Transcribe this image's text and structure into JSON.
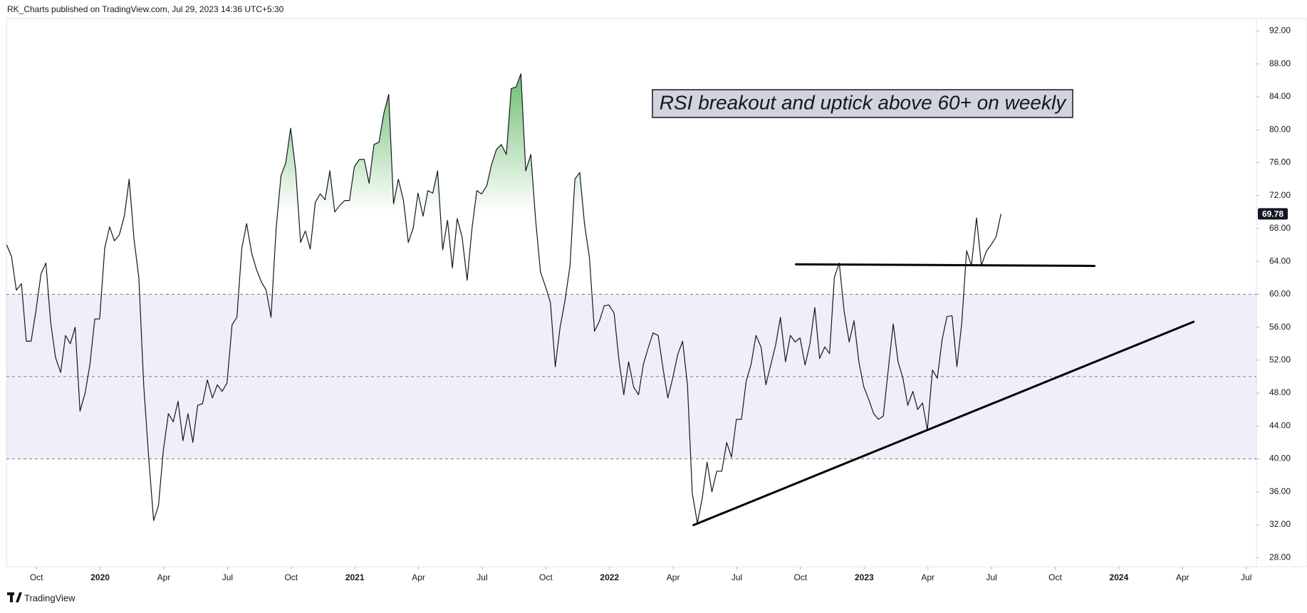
{
  "chart_data": {
    "type": "line",
    "header": "RK_Charts published on TradingView.com, Jul 29, 2023 14:36 UTC+5:30",
    "footer": "TradingView",
    "annotation": "RSI breakout and uptick above 60+ on weekly",
    "x": [
      2019.633,
      2019.652,
      2019.671,
      2019.691,
      2019.71,
      2019.729,
      2019.748,
      2019.768,
      2019.787,
      2019.806,
      2019.825,
      2019.845,
      2019.864,
      2019.883,
      2019.902,
      2019.921,
      2019.941,
      2019.96,
      2019.979,
      2019.998,
      2020.018,
      2020.037,
      2020.056,
      2020.075,
      2020.095,
      2020.114,
      2020.133,
      2020.152,
      2020.171,
      2020.191,
      2020.21,
      2020.229,
      2020.248,
      2020.268,
      2020.287,
      2020.306,
      2020.325,
      2020.345,
      2020.364,
      2020.383,
      2020.402,
      2020.421,
      2020.441,
      2020.46,
      2020.479,
      2020.498,
      2020.518,
      2020.537,
      2020.556,
      2020.575,
      2020.595,
      2020.614,
      2020.633,
      2020.652,
      2020.671,
      2020.691,
      2020.71,
      2020.729,
      2020.748,
      2020.768,
      2020.787,
      2020.806,
      2020.825,
      2020.845,
      2020.864,
      2020.883,
      2020.902,
      2020.921,
      2020.941,
      2020.96,
      2020.979,
      2020.998,
      2021.018,
      2021.037,
      2021.056,
      2021.075,
      2021.095,
      2021.114,
      2021.133,
      2021.152,
      2021.171,
      2021.191,
      2021.21,
      2021.229,
      2021.248,
      2021.268,
      2021.287,
      2021.306,
      2021.325,
      2021.345,
      2021.364,
      2021.383,
      2021.402,
      2021.421,
      2021.441,
      2021.46,
      2021.479,
      2021.498,
      2021.518,
      2021.537,
      2021.556,
      2021.575,
      2021.595,
      2021.614,
      2021.633,
      2021.652,
      2021.671,
      2021.691,
      2021.71,
      2021.729,
      2021.748,
      2021.768,
      2021.787,
      2021.806,
      2021.825,
      2021.845,
      2021.864,
      2021.883,
      2021.902,
      2021.921,
      2021.941,
      2021.96,
      2021.979,
      2021.998,
      2022.018,
      2022.037,
      2022.056,
      2022.075,
      2022.095,
      2022.114,
      2022.133,
      2022.152,
      2022.171,
      2022.191,
      2022.21,
      2022.229,
      2022.248,
      2022.268,
      2022.287,
      2022.306,
      2022.325,
      2022.345,
      2022.364,
      2022.383,
      2022.402,
      2022.421,
      2022.441,
      2022.46,
      2022.479,
      2022.498,
      2022.518,
      2022.537,
      2022.556,
      2022.575,
      2022.595,
      2022.614,
      2022.633,
      2022.652,
      2022.671,
      2022.691,
      2022.71,
      2022.729,
      2022.748,
      2022.768,
      2022.787,
      2022.806,
      2022.825,
      2022.845,
      2022.864,
      2022.883,
      2022.902,
      2022.921,
      2022.941,
      2022.96,
      2022.979,
      2022.998,
      2023.018,
      2023.037,
      2023.056,
      2023.075,
      2023.095,
      2023.114,
      2023.133,
      2023.152,
      2023.171,
      2023.191,
      2023.21,
      2023.229,
      2023.248,
      2023.268,
      2023.287,
      2023.306,
      2023.325,
      2023.345,
      2023.364,
      2023.383,
      2023.402,
      2023.421,
      2023.441,
      2023.46,
      2023.479,
      2023.498,
      2023.518,
      2023.537
    ],
    "series": [
      {
        "color": "#131722",
        "values": [
          66,
          64.6,
          60.5,
          61.3,
          54.3,
          54.3,
          58,
          62.5,
          63.8,
          56.5,
          52.3,
          50.5,
          55,
          54,
          56,
          45.8,
          48,
          51.5,
          57,
          57,
          65.6,
          68.2,
          66.5,
          67.2,
          69.5,
          74,
          66.7,
          62,
          49,
          40,
          32.5,
          34.3,
          41,
          45.5,
          44.5,
          47,
          42.2,
          45.5,
          42,
          46.5,
          46.7,
          49.6,
          47.4,
          49,
          48.2,
          49.2,
          56.3,
          57.2,
          65.5,
          68.6,
          65,
          63,
          61.5,
          60.5,
          57.2,
          68,
          74.4,
          76,
          80.2,
          75,
          66.3,
          67.7,
          65.5,
          71.2,
          72.2,
          71.5,
          75,
          70,
          70.8,
          71.4,
          71.4,
          75.5,
          76.4,
          76.4,
          73.5,
          78.2,
          78.5,
          82,
          84.3,
          71,
          74,
          71.4,
          66.3,
          68,
          72.3,
          69.5,
          72.6,
          72.3,
          75,
          65.4,
          69,
          63.2,
          69.2,
          67,
          61.7,
          68,
          72.6,
          72.2,
          73.2,
          75.8,
          77.6,
          78.2,
          77,
          85,
          85.2,
          86.8,
          75,
          77,
          69,
          62.7,
          61,
          59,
          51.2,
          56,
          59.2,
          63.5,
          74,
          74.8,
          68.5,
          64.5,
          55.5,
          56.7,
          58.6,
          58.7,
          57.7,
          52,
          47.8,
          51.8,
          48.7,
          47.8,
          51.5,
          53.5,
          55.3,
          55,
          51,
          47.4,
          49.8,
          52.7,
          54.3,
          49,
          35.8,
          32.2,
          35.2,
          39.6,
          36,
          38.5,
          38.5,
          42,
          40.2,
          44.8,
          44.8,
          49.5,
          51.5,
          55,
          53.6,
          49,
          51.4,
          53.8,
          57.2,
          51.8,
          55,
          54.2,
          54.7,
          51.4,
          54,
          58.4,
          52.2,
          53.6,
          52.8,
          62.1,
          63.8,
          58,
          54.2,
          56.8,
          51.8,
          48.8,
          47.2,
          45.5,
          44.8,
          45.2,
          51,
          56.4,
          51.8,
          49.8,
          46.5,
          48.2,
          46,
          46.8,
          43.5,
          50.8,
          49.8,
          54.5,
          57.3,
          57.4,
          51.2,
          56.5,
          65.3,
          63.5,
          69.3,
          63.5,
          65.2,
          66,
          67,
          69.78
        ]
      }
    ],
    "trendlines": [
      {
        "x": [
          2022.732,
          2023.904
        ],
        "values": [
          63.65,
          63.45
        ],
        "color": "#000000"
      },
      {
        "x": [
          2022.33,
          2024.293
        ],
        "values": [
          31.95,
          56.66
        ],
        "color": "#000000"
      }
    ],
    "levels": [
      60,
      50,
      40
    ],
    "band_color": "#7e57c2",
    "overbought": 70,
    "overbought_color": "#4caf50",
    "xlim": [
      2019.632,
      2024.54
    ],
    "xticks": [
      {
        "value": 2019.75,
        "label": "Oct"
      },
      {
        "value": 2020,
        "label": "2020"
      },
      {
        "value": 2020.25,
        "label": "Apr"
      },
      {
        "value": 2020.5,
        "label": "Jul"
      },
      {
        "value": 2020.75,
        "label": "Oct"
      },
      {
        "value": 2021,
        "label": "2021"
      },
      {
        "value": 2021.25,
        "label": "Apr"
      },
      {
        "value": 2021.5,
        "label": "Jul"
      },
      {
        "value": 2021.75,
        "label": "Oct"
      },
      {
        "value": 2022,
        "label": "2022"
      },
      {
        "value": 2022.25,
        "label": "Apr"
      },
      {
        "value": 2022.5,
        "label": "Jul"
      },
      {
        "value": 2022.75,
        "label": "Oct"
      },
      {
        "value": 2023,
        "label": "2023"
      },
      {
        "value": 2023.25,
        "label": "Apr"
      },
      {
        "value": 2023.5,
        "label": "Jul"
      },
      {
        "value": 2023.75,
        "label": "Oct"
      },
      {
        "value": 2024,
        "label": "2024"
      },
      {
        "value": 2024.25,
        "label": "Apr"
      },
      {
        "value": 2024.5,
        "label": "Jul"
      }
    ],
    "ylim": [
      26.89,
      93.52
    ],
    "yticks": [
      {
        "value": 28,
        "label": "28.00"
      },
      {
        "value": 32,
        "label": "32.00"
      },
      {
        "value": 36,
        "label": "36.00"
      },
      {
        "value": 40,
        "label": "40.00"
      },
      {
        "value": 44,
        "label": "44.00"
      },
      {
        "value": 48,
        "label": "48.00"
      },
      {
        "value": 52,
        "label": "52.00"
      },
      {
        "value": 56,
        "label": "56.00"
      },
      {
        "value": 60,
        "label": "60.00"
      },
      {
        "value": 64,
        "label": "64.00"
      },
      {
        "value": 68,
        "label": "68.00"
      },
      {
        "value": 72,
        "label": "72.00"
      },
      {
        "value": 76,
        "label": "76.00"
      },
      {
        "value": 80,
        "label": "80.00"
      },
      {
        "value": 84,
        "label": "84.00"
      },
      {
        "value": 88,
        "label": "88.00"
      },
      {
        "value": 92,
        "label": "92.00"
      }
    ]
  }
}
